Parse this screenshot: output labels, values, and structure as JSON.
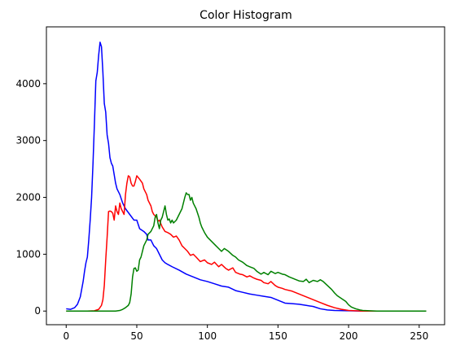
{
  "chart_data": {
    "type": "line",
    "title": "Color Histogram",
    "xlabel": "",
    "ylabel": "",
    "xlim": [
      -14,
      268
    ],
    "ylim": [
      -240,
      5000
    ],
    "xticks": [
      0,
      50,
      100,
      150,
      200,
      250
    ],
    "yticks": [
      0,
      1000,
      2000,
      3000,
      4000
    ],
    "grid": false,
    "legend": "none",
    "series": [
      {
        "color": "#0000ff",
        "points": [
          [
            0,
            40
          ],
          [
            3,
            30
          ],
          [
            6,
            60
          ],
          [
            8,
            120
          ],
          [
            10,
            250
          ],
          [
            12,
            520
          ],
          [
            13,
            700
          ],
          [
            14,
            850
          ],
          [
            15,
            950
          ],
          [
            16,
            1250
          ],
          [
            17,
            1600
          ],
          [
            18,
            2000
          ],
          [
            19,
            2600
          ],
          [
            20,
            3300
          ],
          [
            21,
            4050
          ],
          [
            22,
            4200
          ],
          [
            23,
            4500
          ],
          [
            24,
            4730
          ],
          [
            25,
            4650
          ],
          [
            26,
            4200
          ],
          [
            27,
            3650
          ],
          [
            28,
            3500
          ],
          [
            29,
            3100
          ],
          [
            30,
            2950
          ],
          [
            31,
            2700
          ],
          [
            32,
            2600
          ],
          [
            33,
            2550
          ],
          [
            34,
            2400
          ],
          [
            35,
            2250
          ],
          [
            36,
            2150
          ],
          [
            38,
            2050
          ],
          [
            40,
            1900
          ],
          [
            42,
            1800
          ],
          [
            45,
            1700
          ],
          [
            48,
            1600
          ],
          [
            50,
            1600
          ],
          [
            52,
            1450
          ],
          [
            55,
            1400
          ],
          [
            57,
            1350
          ],
          [
            58,
            1250
          ],
          [
            60,
            1250
          ],
          [
            62,
            1150
          ],
          [
            64,
            1100
          ],
          [
            66,
            1000
          ],
          [
            68,
            900
          ],
          [
            70,
            850
          ],
          [
            72,
            820
          ],
          [
            75,
            780
          ],
          [
            80,
            720
          ],
          [
            85,
            650
          ],
          [
            90,
            600
          ],
          [
            95,
            550
          ],
          [
            100,
            520
          ],
          [
            105,
            480
          ],
          [
            110,
            440
          ],
          [
            115,
            420
          ],
          [
            120,
            360
          ],
          [
            125,
            330
          ],
          [
            130,
            300
          ],
          [
            135,
            280
          ],
          [
            140,
            260
          ],
          [
            145,
            240
          ],
          [
            150,
            190
          ],
          [
            155,
            140
          ],
          [
            160,
            130
          ],
          [
            165,
            120
          ],
          [
            170,
            100
          ],
          [
            175,
            80
          ],
          [
            180,
            40
          ],
          [
            185,
            20
          ],
          [
            190,
            10
          ],
          [
            200,
            5
          ],
          [
            210,
            0
          ],
          [
            255,
            0
          ]
        ]
      },
      {
        "color": "#ff0000",
        "points": [
          [
            0,
            0
          ],
          [
            5,
            0
          ],
          [
            10,
            0
          ],
          [
            15,
            0
          ],
          [
            20,
            5
          ],
          [
            23,
            30
          ],
          [
            25,
            100
          ],
          [
            26,
            200
          ],
          [
            27,
            450
          ],
          [
            28,
            900
          ],
          [
            29,
            1300
          ],
          [
            30,
            1750
          ],
          [
            31,
            1760
          ],
          [
            32,
            1750
          ],
          [
            33,
            1720
          ],
          [
            34,
            1600
          ],
          [
            35,
            1850
          ],
          [
            36,
            1750
          ],
          [
            37,
            1700
          ],
          [
            38,
            1900
          ],
          [
            39,
            1800
          ],
          [
            40,
            1750
          ],
          [
            41,
            1700
          ],
          [
            42,
            2050
          ],
          [
            43,
            2250
          ],
          [
            44,
            2380
          ],
          [
            45,
            2360
          ],
          [
            46,
            2250
          ],
          [
            47,
            2200
          ],
          [
            48,
            2200
          ],
          [
            49,
            2280
          ],
          [
            50,
            2380
          ],
          [
            51,
            2350
          ],
          [
            52,
            2320
          ],
          [
            54,
            2250
          ],
          [
            55,
            2150
          ],
          [
            56,
            2100
          ],
          [
            57,
            2050
          ],
          [
            58,
            1950
          ],
          [
            60,
            1850
          ],
          [
            61,
            1750
          ],
          [
            62,
            1700
          ],
          [
            64,
            1650
          ],
          [
            65,
            1580
          ],
          [
            66,
            1600
          ],
          [
            68,
            1480
          ],
          [
            70,
            1400
          ],
          [
            72,
            1380
          ],
          [
            74,
            1350
          ],
          [
            76,
            1300
          ],
          [
            78,
            1320
          ],
          [
            80,
            1250
          ],
          [
            82,
            1150
          ],
          [
            84,
            1100
          ],
          [
            86,
            1050
          ],
          [
            88,
            980
          ],
          [
            90,
            1000
          ],
          [
            92,
            950
          ],
          [
            95,
            870
          ],
          [
            98,
            900
          ],
          [
            100,
            850
          ],
          [
            103,
            820
          ],
          [
            105,
            860
          ],
          [
            108,
            780
          ],
          [
            110,
            820
          ],
          [
            113,
            750
          ],
          [
            115,
            720
          ],
          [
            118,
            760
          ],
          [
            120,
            680
          ],
          [
            123,
            650
          ],
          [
            125,
            640
          ],
          [
            128,
            600
          ],
          [
            130,
            620
          ],
          [
            133,
            580
          ],
          [
            135,
            560
          ],
          [
            138,
            540
          ],
          [
            140,
            500
          ],
          [
            143,
            480
          ],
          [
            145,
            520
          ],
          [
            148,
            450
          ],
          [
            150,
            420
          ],
          [
            153,
            400
          ],
          [
            155,
            380
          ],
          [
            160,
            350
          ],
          [
            165,
            300
          ],
          [
            170,
            250
          ],
          [
            175,
            200
          ],
          [
            180,
            150
          ],
          [
            185,
            100
          ],
          [
            190,
            60
          ],
          [
            195,
            30
          ],
          [
            200,
            10
          ],
          [
            205,
            5
          ],
          [
            210,
            0
          ],
          [
            255,
            0
          ]
        ]
      },
      {
        "color": "#008000",
        "points": [
          [
            0,
            0
          ],
          [
            10,
            0
          ],
          [
            20,
            0
          ],
          [
            30,
            0
          ],
          [
            35,
            0
          ],
          [
            38,
            10
          ],
          [
            40,
            30
          ],
          [
            42,
            60
          ],
          [
            44,
            100
          ],
          [
            45,
            150
          ],
          [
            46,
            300
          ],
          [
            47,
            600
          ],
          [
            48,
            750
          ],
          [
            49,
            760
          ],
          [
            50,
            700
          ],
          [
            51,
            720
          ],
          [
            52,
            900
          ],
          [
            53,
            950
          ],
          [
            54,
            1050
          ],
          [
            55,
            1150
          ],
          [
            56,
            1200
          ],
          [
            57,
            1250
          ],
          [
            58,
            1350
          ],
          [
            60,
            1400
          ],
          [
            61,
            1450
          ],
          [
            62,
            1500
          ],
          [
            63,
            1650
          ],
          [
            64,
            1700
          ],
          [
            65,
            1550
          ],
          [
            66,
            1450
          ],
          [
            67,
            1600
          ],
          [
            68,
            1650
          ],
          [
            69,
            1750
          ],
          [
            70,
            1850
          ],
          [
            71,
            1700
          ],
          [
            72,
            1600
          ],
          [
            73,
            1620
          ],
          [
            74,
            1550
          ],
          [
            75,
            1600
          ],
          [
            76,
            1550
          ],
          [
            78,
            1600
          ],
          [
            80,
            1700
          ],
          [
            82,
            1800
          ],
          [
            83,
            1900
          ],
          [
            84,
            2000
          ],
          [
            85,
            2080
          ],
          [
            86,
            2050
          ],
          [
            87,
            2050
          ],
          [
            88,
            1950
          ],
          [
            89,
            2000
          ],
          [
            90,
            1900
          ],
          [
            92,
            1800
          ],
          [
            94,
            1650
          ],
          [
            95,
            1550
          ],
          [
            96,
            1480
          ],
          [
            98,
            1380
          ],
          [
            100,
            1300
          ],
          [
            102,
            1250
          ],
          [
            104,
            1200
          ],
          [
            106,
            1150
          ],
          [
            108,
            1100
          ],
          [
            110,
            1050
          ],
          [
            112,
            1100
          ],
          [
            115,
            1050
          ],
          [
            118,
            980
          ],
          [
            120,
            950
          ],
          [
            122,
            900
          ],
          [
            125,
            860
          ],
          [
            128,
            800
          ],
          [
            130,
            780
          ],
          [
            133,
            750
          ],
          [
            135,
            700
          ],
          [
            138,
            650
          ],
          [
            140,
            680
          ],
          [
            143,
            640
          ],
          [
            145,
            700
          ],
          [
            148,
            660
          ],
          [
            150,
            680
          ],
          [
            153,
            650
          ],
          [
            155,
            640
          ],
          [
            158,
            600
          ],
          [
            160,
            580
          ],
          [
            163,
            550
          ],
          [
            165,
            530
          ],
          [
            168,
            520
          ],
          [
            170,
            560
          ],
          [
            172,
            500
          ],
          [
            175,
            540
          ],
          [
            178,
            520
          ],
          [
            180,
            550
          ],
          [
            182,
            520
          ],
          [
            185,
            450
          ],
          [
            188,
            380
          ],
          [
            190,
            320
          ],
          [
            192,
            270
          ],
          [
            195,
            220
          ],
          [
            198,
            170
          ],
          [
            200,
            110
          ],
          [
            202,
            70
          ],
          [
            205,
            40
          ],
          [
            208,
            20
          ],
          [
            210,
            10
          ],
          [
            215,
            5
          ],
          [
            220,
            0
          ],
          [
            255,
            0
          ]
        ]
      }
    ]
  }
}
